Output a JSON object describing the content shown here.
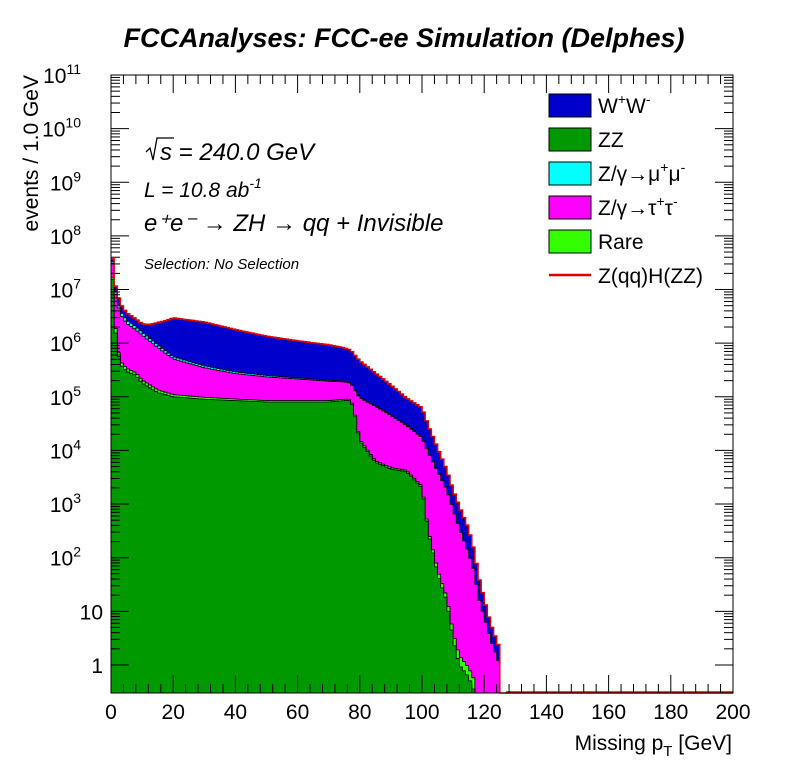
{
  "chart_data": {
    "type": "area",
    "stacked": true,
    "log_y": true,
    "title": "FCCAnalyses: FCC-ee Simulation (Delphes)",
    "xlabel": "Missing p",
    "xlabel_sub": "T",
    "xlabel_unit": " [GeV]",
    "ylabel": "events / 1.0 GeV",
    "xlim": [
      0,
      200
    ],
    "ylim": [
      0.3,
      100000000000
    ],
    "x_ticks": [
      0,
      20,
      40,
      60,
      80,
      100,
      120,
      140,
      160,
      180,
      200
    ],
    "y_ticks": [
      {
        "value": 100000000000,
        "base": "10",
        "exp": "11"
      },
      {
        "value": 10000000000,
        "base": "10",
        "exp": "10"
      },
      {
        "value": 1000000000,
        "base": "10",
        "exp": "9"
      },
      {
        "value": 100000000,
        "base": "10",
        "exp": "8"
      },
      {
        "value": 10000000,
        "base": "10",
        "exp": "7"
      },
      {
        "value": 1000000,
        "base": "10",
        "exp": "6"
      },
      {
        "value": 100000,
        "base": "10",
        "exp": "5"
      },
      {
        "value": 10000,
        "base": "10",
        "exp": "4"
      },
      {
        "value": 1000,
        "base": "10",
        "exp": "3"
      },
      {
        "value": 100,
        "base": "10",
        "exp": "2"
      },
      {
        "value": 10,
        "base": "10",
        "exp": ""
      },
      {
        "value": 1,
        "base": "1",
        "exp": ""
      }
    ],
    "grid": false,
    "legend_position": "top-right",
    "annotations": {
      "sqrt_s": "s = 240.0 GeV",
      "lumi_prefix": "L = 10.8 ab",
      "lumi_exp": "-1",
      "process": "e⁺e⁻ → ZH → qq + Invisible",
      "selection": "Selection: No Selection"
    },
    "x_knots": [
      0,
      1,
      2,
      3,
      5,
      8,
      10,
      15,
      20,
      30,
      40,
      50,
      60,
      70,
      75,
      77,
      78,
      80,
      85,
      90,
      95,
      100,
      102,
      105,
      108,
      110,
      112,
      115,
      117,
      118,
      120,
      122,
      125,
      126,
      127,
      200
    ],
    "series": [
      {
        "name": "ZZ",
        "color": "#009900",
        "values": [
          80000000,
          3000000,
          800000,
          400000,
          300000,
          250000,
          180000,
          120000,
          100000,
          90000,
          85000,
          80000,
          80000,
          80000,
          85000,
          85000,
          60000,
          15000,
          6000,
          4500,
          4000,
          2000,
          300,
          50,
          15,
          3,
          1,
          0.6,
          0.3,
          0,
          0,
          0,
          0,
          0,
          0,
          0
        ]
      },
      {
        "name": "Rare",
        "color": "#33ff00",
        "values": [
          3000000,
          700000,
          150000,
          60000,
          40000,
          30000,
          25000,
          15000,
          10000,
          8000,
          6000,
          5000,
          5000,
          5000,
          5000,
          5000,
          4000,
          1000,
          400,
          300,
          250,
          150,
          30,
          10,
          3,
          1,
          0.5,
          0.3,
          0.2,
          0,
          0,
          0,
          0,
          0,
          0,
          0
        ]
      },
      {
        "name": "Z/γ→τ⁺τ⁻",
        "color": "#ff00ff",
        "values": [
          25000000,
          8000000,
          5000000,
          3000000,
          2000000,
          1500000,
          1200000,
          700000,
          400000,
          250000,
          180000,
          150000,
          130000,
          110000,
          100000,
          90000,
          85000,
          80000,
          60000,
          40000,
          25000,
          15000,
          9000,
          4000,
          1800,
          800,
          350,
          120,
          50,
          20,
          8,
          3,
          1,
          0,
          0,
          0
        ]
      },
      {
        "name": "Z/γ→μ⁺μ⁻",
        "color": "#00ffff",
        "values": [
          5000000,
          1000000,
          800000,
          500000,
          350000,
          250000,
          200000,
          100000,
          50000,
          30000,
          20000,
          15000,
          10000,
          8000,
          6000,
          5000,
          4000,
          3000,
          2000,
          1200,
          800,
          400,
          200,
          100,
          40,
          15,
          6,
          2,
          0.8,
          0.3,
          0,
          0,
          0,
          0,
          0,
          0
        ]
      },
      {
        "name": "W⁺W⁻",
        "color": "#0000cc",
        "values": [
          5000000,
          3000000,
          2000000,
          1500000,
          1000000,
          800000,
          700000,
          1500000,
          2400000,
          2100000,
          1500000,
          1100000,
          880000,
          730000,
          620000,
          560000,
          490000,
          370000,
          210000,
          120000,
          65000,
          45000,
          20000,
          7000,
          2400,
          1000,
          550,
          220,
          70,
          30,
          9,
          3,
          1,
          0,
          0,
          0
        ]
      },
      {
        "name": "Z(qq)H(ZZ)",
        "color": "#dd0000",
        "line": true,
        "values": [
          0,
          0,
          0,
          0,
          0,
          0,
          0,
          0,
          0,
          0,
          0,
          0,
          0,
          0,
          0,
          0,
          0,
          0,
          0,
          0,
          0,
          0,
          0,
          0,
          0,
          0,
          0,
          0,
          0,
          0,
          0,
          0,
          0,
          0,
          0,
          0
        ]
      }
    ],
    "legend": [
      {
        "label": "W",
        "sup1": "+",
        "mid": "W",
        "sup2": "-",
        "color": "#0000cc"
      },
      {
        "label": "ZZ",
        "sup1": "",
        "mid": "",
        "sup2": "",
        "color": "#009900"
      },
      {
        "label": "Z/γ→μ",
        "sup1": "+",
        "mid": "μ",
        "sup2": "-",
        "color": "#00ffff"
      },
      {
        "label": "Z/γ→τ",
        "sup1": "+",
        "mid": "τ",
        "sup2": "-",
        "color": "#ff00ff"
      },
      {
        "label": "Rare",
        "sup1": "",
        "mid": "",
        "sup2": "",
        "color": "#33ff00"
      },
      {
        "label": "Z(qq)H(ZZ)",
        "sup1": "",
        "mid": "",
        "sup2": "",
        "color": "#dd0000",
        "line": true
      }
    ]
  }
}
